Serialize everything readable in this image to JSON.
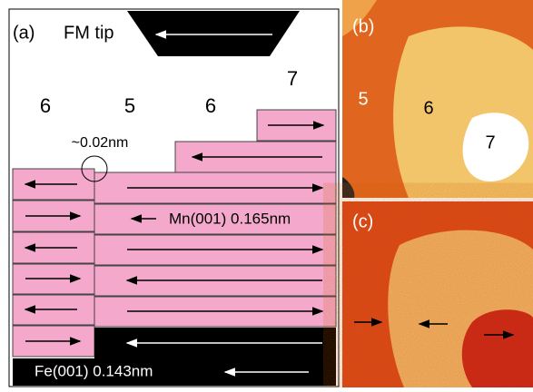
{
  "panel_a": {
    "label": "(a)",
    "tip_label": "FM tip",
    "terrace_labels": [
      "6",
      "5",
      "6",
      "7"
    ],
    "step_height": "~0.02nm",
    "mn_label": "Mn(001) 0.165nm",
    "fe_label": "Fe(001) 0.143nm"
  },
  "panel_b": {
    "label": "(b)",
    "terrace_labels": [
      "5",
      "6",
      "7"
    ]
  },
  "panel_c": {
    "label": "(c)"
  }
}
